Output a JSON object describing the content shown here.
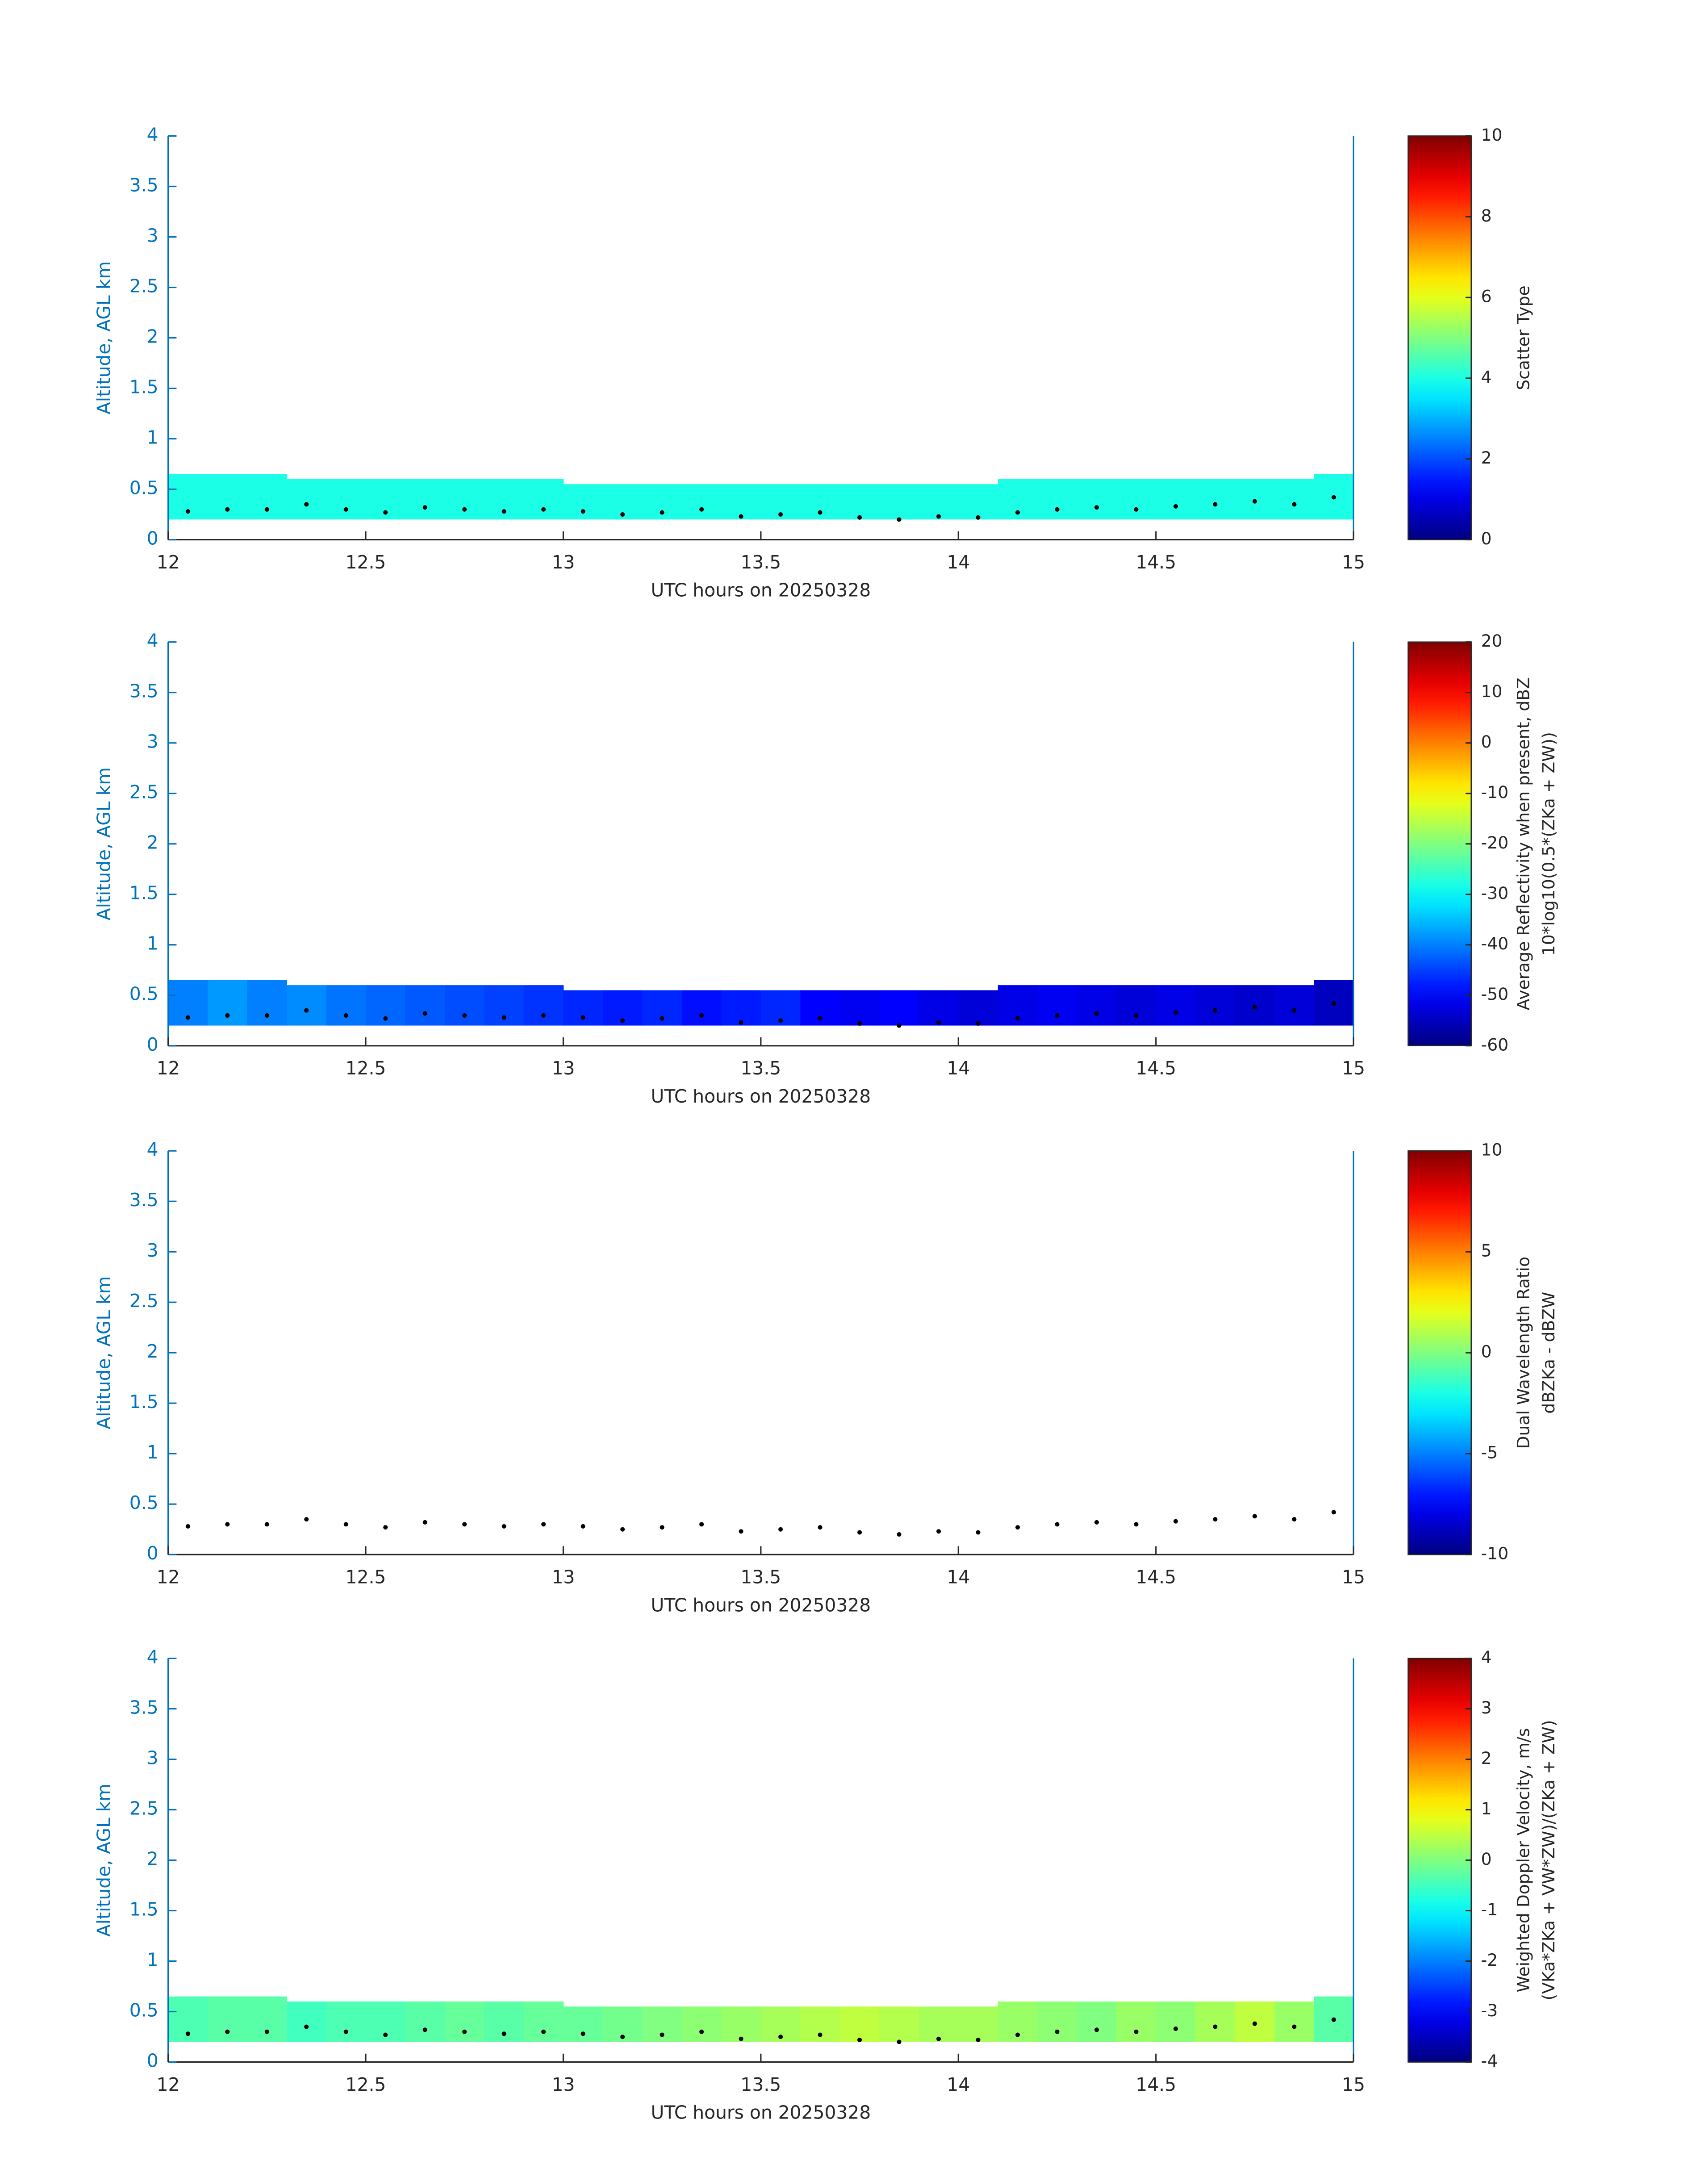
{
  "chart_data": [
    {
      "type": "heatmap",
      "xlabel": "UTC hours on 20250328",
      "ylabel": "Altitude, AGL km",
      "xlim": [
        12,
        15
      ],
      "ylim": [
        0,
        4
      ],
      "xticks": [
        12,
        12.5,
        13,
        13.5,
        14,
        14.5,
        15
      ],
      "yticks": [
        0,
        0.5,
        1,
        1.5,
        2,
        2.5,
        3,
        3.5,
        4
      ],
      "bins": [
        12,
        12.1,
        12.2,
        12.3,
        12.4,
        12.5,
        12.6,
        12.7,
        12.8,
        12.9,
        13,
        13.1,
        13.2,
        13.3,
        13.4,
        13.5,
        13.6,
        13.7,
        13.8,
        13.9,
        14,
        14.1,
        14.2,
        14.3,
        14.4,
        14.5,
        14.6,
        14.7,
        14.8,
        14.9,
        15
      ],
      "cells": {
        "top": [
          0.65,
          0.65,
          0.65,
          0.6,
          0.6,
          0.6,
          0.6,
          0.6,
          0.6,
          0.6,
          0.55,
          0.55,
          0.55,
          0.55,
          0.55,
          0.55,
          0.55,
          0.55,
          0.55,
          0.55,
          0.55,
          0.6,
          0.6,
          0.6,
          0.6,
          0.6,
          0.6,
          0.6,
          0.6,
          0.65
        ],
        "bottom": [
          0.2,
          0.2,
          0.2,
          0.2,
          0.2,
          0.2,
          0.2,
          0.2,
          0.2,
          0.2,
          0.2,
          0.2,
          0.2,
          0.2,
          0.2,
          0.2,
          0.2,
          0.2,
          0.2,
          0.2,
          0.2,
          0.2,
          0.2,
          0.2,
          0.2,
          0.2,
          0.2,
          0.2,
          0.2,
          0.2
        ],
        "values": [
          4,
          4,
          4,
          4,
          4,
          4,
          4,
          4,
          4,
          4,
          4,
          4,
          4,
          4,
          4,
          4,
          4,
          4,
          4,
          4,
          4,
          4,
          4,
          4,
          4,
          4,
          4,
          4,
          4,
          4
        ]
      },
      "series": [
        {
          "color": "#000000",
          "x": [
            12.05,
            12.15,
            12.25,
            12.35,
            12.45,
            12.55,
            12.65,
            12.75,
            12.85,
            12.95,
            13.05,
            13.15,
            13.25,
            13.35,
            13.45,
            13.55,
            13.65,
            13.75,
            13.85,
            13.95,
            14.05,
            14.15,
            14.25,
            14.35,
            14.45,
            14.55,
            14.65,
            14.75,
            14.85,
            14.95
          ],
          "y": [
            0.28,
            0.3,
            0.3,
            0.35,
            0.3,
            0.27,
            0.32,
            0.3,
            0.28,
            0.3,
            0.28,
            0.25,
            0.27,
            0.3,
            0.23,
            0.25,
            0.27,
            0.22,
            0.2,
            0.23,
            0.22,
            0.27,
            0.3,
            0.32,
            0.3,
            0.33,
            0.35,
            0.38,
            0.35,
            0.42
          ]
        }
      ],
      "colormap": "jet",
      "clim": [
        0,
        10
      ],
      "cticks": [
        0,
        2,
        4,
        6,
        8,
        10
      ],
      "clabel": [
        "Scatter Type"
      ]
    },
    {
      "type": "heatmap",
      "xlabel": "UTC hours on 20250328",
      "ylabel": "Altitude, AGL km",
      "xlim": [
        12,
        15
      ],
      "ylim": [
        0,
        4
      ],
      "xticks": [
        12,
        12.5,
        13,
        13.5,
        14,
        14.5,
        15
      ],
      "yticks": [
        0,
        0.5,
        1,
        1.5,
        2,
        2.5,
        3,
        3.5,
        4
      ],
      "bins": [
        12,
        12.1,
        12.2,
        12.3,
        12.4,
        12.5,
        12.6,
        12.7,
        12.8,
        12.9,
        13,
        13.1,
        13.2,
        13.3,
        13.4,
        13.5,
        13.6,
        13.7,
        13.8,
        13.9,
        14,
        14.1,
        14.2,
        14.3,
        14.4,
        14.5,
        14.6,
        14.7,
        14.8,
        14.9,
        15
      ],
      "cells": {
        "top": [
          0.65,
          0.65,
          0.65,
          0.6,
          0.6,
          0.6,
          0.6,
          0.6,
          0.6,
          0.6,
          0.55,
          0.55,
          0.55,
          0.55,
          0.55,
          0.55,
          0.55,
          0.55,
          0.55,
          0.55,
          0.55,
          0.6,
          0.6,
          0.6,
          0.6,
          0.6,
          0.6,
          0.6,
          0.6,
          0.65
        ],
        "bottom": [
          0.2,
          0.2,
          0.2,
          0.2,
          0.2,
          0.2,
          0.2,
          0.2,
          0.2,
          0.2,
          0.2,
          0.2,
          0.2,
          0.2,
          0.2,
          0.2,
          0.2,
          0.2,
          0.2,
          0.2,
          0.2,
          0.2,
          0.2,
          0.2,
          0.2,
          0.2,
          0.2,
          0.2,
          0.2,
          0.2
        ],
        "values": [
          -40,
          -38,
          -40,
          -39,
          -41,
          -42,
          -43,
          -44,
          -45,
          -46,
          -47,
          -48,
          -47,
          -49,
          -48,
          -47,
          -50,
          -51,
          -50,
          -52,
          -53,
          -52,
          -51,
          -52,
          -53,
          -52,
          -53,
          -54,
          -53,
          -55
        ]
      },
      "series": [
        {
          "color": "#000000",
          "x": [
            12.05,
            12.15,
            12.25,
            12.35,
            12.45,
            12.55,
            12.65,
            12.75,
            12.85,
            12.95,
            13.05,
            13.15,
            13.25,
            13.35,
            13.45,
            13.55,
            13.65,
            13.75,
            13.85,
            13.95,
            14.05,
            14.15,
            14.25,
            14.35,
            14.45,
            14.55,
            14.65,
            14.75,
            14.85,
            14.95
          ],
          "y": [
            0.28,
            0.3,
            0.3,
            0.35,
            0.3,
            0.27,
            0.32,
            0.3,
            0.28,
            0.3,
            0.28,
            0.25,
            0.27,
            0.3,
            0.23,
            0.25,
            0.27,
            0.22,
            0.2,
            0.23,
            0.22,
            0.27,
            0.3,
            0.32,
            0.3,
            0.33,
            0.35,
            0.38,
            0.35,
            0.42
          ]
        }
      ],
      "colormap": "jet",
      "clim": [
        -60,
        20
      ],
      "cticks": [
        -60,
        -50,
        -40,
        -30,
        -20,
        -10,
        0,
        10,
        20
      ],
      "clabel": [
        "Average Reflectivity when present, dBZ",
        "10*log10(0.5*(ZKa + ZW))"
      ]
    },
    {
      "type": "heatmap",
      "xlabel": "UTC hours on 20250328",
      "ylabel": "Altitude, AGL km",
      "xlim": [
        12,
        15
      ],
      "ylim": [
        0,
        4
      ],
      "xticks": [
        12,
        12.5,
        13,
        13.5,
        14,
        14.5,
        15
      ],
      "yticks": [
        0,
        0.5,
        1,
        1.5,
        2,
        2.5,
        3,
        3.5,
        4
      ],
      "series": [
        {
          "color": "#000000",
          "x": [
            12.05,
            12.15,
            12.25,
            12.35,
            12.45,
            12.55,
            12.65,
            12.75,
            12.85,
            12.95,
            13.05,
            13.15,
            13.25,
            13.35,
            13.45,
            13.55,
            13.65,
            13.75,
            13.85,
            13.95,
            14.05,
            14.15,
            14.25,
            14.35,
            14.45,
            14.55,
            14.65,
            14.75,
            14.85,
            14.95
          ],
          "y": [
            0.28,
            0.3,
            0.3,
            0.35,
            0.3,
            0.27,
            0.32,
            0.3,
            0.28,
            0.3,
            0.28,
            0.25,
            0.27,
            0.3,
            0.23,
            0.25,
            0.27,
            0.22,
            0.2,
            0.23,
            0.22,
            0.27,
            0.3,
            0.32,
            0.3,
            0.33,
            0.35,
            0.38,
            0.35,
            0.42
          ]
        }
      ],
      "colormap": "jet",
      "clim": [
        -10,
        10
      ],
      "cticks": [
        -10,
        -5,
        0,
        5,
        10
      ],
      "clabel": [
        "Dual Wavelength Ratio",
        "dBZKa - dBZW"
      ]
    },
    {
      "type": "heatmap",
      "xlabel": "UTC hours on 20250328",
      "ylabel": "Altitude, AGL km",
      "xlim": [
        12,
        15
      ],
      "ylim": [
        0,
        4
      ],
      "xticks": [
        12,
        12.5,
        13,
        13.5,
        14,
        14.5,
        15
      ],
      "yticks": [
        0,
        0.5,
        1,
        1.5,
        2,
        2.5,
        3,
        3.5,
        4
      ],
      "bins": [
        12,
        12.1,
        12.2,
        12.3,
        12.4,
        12.5,
        12.6,
        12.7,
        12.8,
        12.9,
        13,
        13.1,
        13.2,
        13.3,
        13.4,
        13.5,
        13.6,
        13.7,
        13.8,
        13.9,
        14,
        14.1,
        14.2,
        14.3,
        14.4,
        14.5,
        14.6,
        14.7,
        14.8,
        14.9,
        15
      ],
      "cells": {
        "top": [
          0.65,
          0.65,
          0.65,
          0.6,
          0.6,
          0.6,
          0.6,
          0.6,
          0.6,
          0.6,
          0.55,
          0.55,
          0.55,
          0.55,
          0.55,
          0.55,
          0.55,
          0.55,
          0.55,
          0.55,
          0.55,
          0.6,
          0.6,
          0.6,
          0.6,
          0.6,
          0.6,
          0.6,
          0.6,
          0.65
        ],
        "bottom": [
          0.2,
          0.2,
          0.2,
          0.2,
          0.2,
          0.2,
          0.2,
          0.2,
          0.2,
          0.2,
          0.2,
          0.2,
          0.2,
          0.2,
          0.2,
          0.2,
          0.2,
          0.2,
          0.2,
          0.2,
          0.2,
          0.2,
          0.2,
          0.2,
          0.2,
          0.2,
          0.2,
          0.2,
          0.2,
          0.2
        ],
        "values": [
          -0.4,
          -0.3,
          -0.3,
          -0.5,
          -0.4,
          -0.4,
          -0.3,
          -0.2,
          -0.3,
          -0.2,
          -0.2,
          -0.1,
          0,
          0.1,
          0.2,
          0.3,
          0.4,
          0.5,
          0.4,
          0.3,
          0.3,
          0.2,
          0.1,
          0,
          0.2,
          0.1,
          0.3,
          0.5,
          0.2,
          -0.3
        ]
      },
      "series": [
        {
          "color": "#000000",
          "x": [
            12.05,
            12.15,
            12.25,
            12.35,
            12.45,
            12.55,
            12.65,
            12.75,
            12.85,
            12.95,
            13.05,
            13.15,
            13.25,
            13.35,
            13.45,
            13.55,
            13.65,
            13.75,
            13.85,
            13.95,
            14.05,
            14.15,
            14.25,
            14.35,
            14.45,
            14.55,
            14.65,
            14.75,
            14.85,
            14.95
          ],
          "y": [
            0.28,
            0.3,
            0.3,
            0.35,
            0.3,
            0.27,
            0.32,
            0.3,
            0.28,
            0.3,
            0.28,
            0.25,
            0.27,
            0.3,
            0.23,
            0.25,
            0.27,
            0.22,
            0.2,
            0.23,
            0.22,
            0.27,
            0.3,
            0.32,
            0.3,
            0.33,
            0.35,
            0.38,
            0.35,
            0.42
          ]
        }
      ],
      "colormap": "jet",
      "clim": [
        -4,
        4
      ],
      "cticks": [
        -4,
        -3,
        -2,
        -1,
        0,
        1,
        2,
        3,
        4
      ],
      "clabel": [
        "Weighted Doppler Velocity, m/s",
        "(VKa*ZKa + VW*ZW)/(ZKa + ZW)"
      ]
    }
  ]
}
